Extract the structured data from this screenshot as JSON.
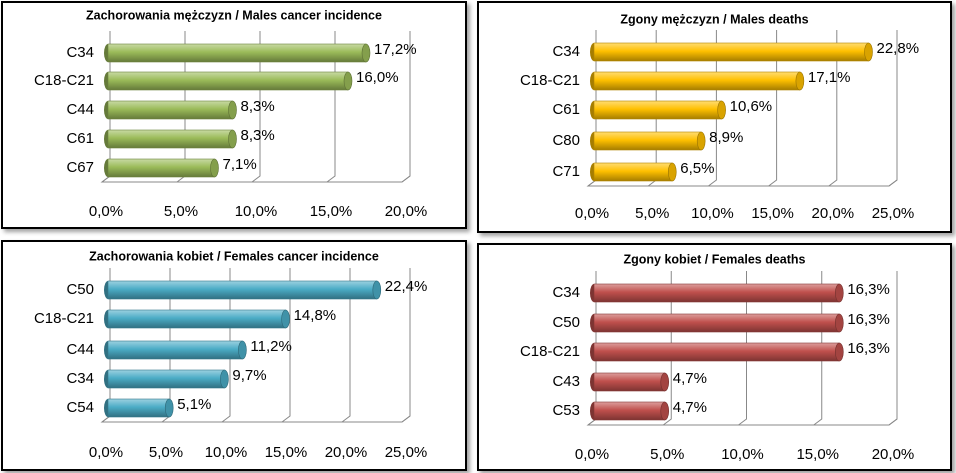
{
  "chart_data": [
    {
      "type": "bar",
      "title": "Zachorowania mężczyzn / Males cancer incidence",
      "categories": [
        "C34",
        "C18-C21",
        "C44",
        "C61",
        "C67"
      ],
      "values": [
        17.2,
        16.0,
        8.3,
        8.3,
        7.1
      ],
      "value_labels": [
        "17,2%",
        "16,0%",
        "8,3%",
        "8,3%",
        "7,1%"
      ],
      "color": "#9bbb59",
      "xlim": [
        0,
        20
      ],
      "xticks": [
        {
          "value": 0,
          "label": "0,0%"
        },
        {
          "value": 5,
          "label": "5,0%"
        },
        {
          "value": 10,
          "label": "10,0%"
        },
        {
          "value": 15,
          "label": "15,0%"
        },
        {
          "value": 20,
          "label": "20,0%"
        }
      ]
    },
    {
      "type": "bar",
      "title": "Zgony mężczyzn / Males deaths",
      "categories": [
        "C34",
        "C18-C21",
        "C61",
        "C80",
        "C71"
      ],
      "values": [
        22.8,
        17.1,
        10.6,
        8.9,
        6.5
      ],
      "value_labels": [
        "22,8%",
        "17,1%",
        "10,6%",
        "8,9%",
        "6,5%"
      ],
      "color": "#ffc000",
      "xlim": [
        0,
        25
      ],
      "xticks": [
        {
          "value": 0,
          "label": "0,0%"
        },
        {
          "value": 5,
          "label": "5,0%"
        },
        {
          "value": 10,
          "label": "10,0%"
        },
        {
          "value": 15,
          "label": "15,0%"
        },
        {
          "value": 20,
          "label": "20,0%"
        },
        {
          "value": 25,
          "label": "25,0%"
        }
      ]
    },
    {
      "type": "bar",
      "title": "Zachorowania kobiet / Females cancer incidence",
      "categories": [
        "C50",
        "C18-C21",
        "C44",
        "C34",
        "C54"
      ],
      "values": [
        22.4,
        14.8,
        11.2,
        9.7,
        5.1
      ],
      "value_labels": [
        "22,4%",
        "14,8%",
        "11,2%",
        "9,7%",
        "5,1%"
      ],
      "color": "#4bacc6",
      "xlim": [
        0,
        25
      ],
      "xticks": [
        {
          "value": 0,
          "label": "0,0%"
        },
        {
          "value": 5,
          "label": "5,0%"
        },
        {
          "value": 10,
          "label": "10,0%"
        },
        {
          "value": 15,
          "label": "15,0%"
        },
        {
          "value": 20,
          "label": "20,0%"
        },
        {
          "value": 25,
          "label": "25,0%"
        }
      ]
    },
    {
      "type": "bar",
      "title": "Zgony kobiet / Females deaths",
      "categories": [
        "C34",
        "C50",
        "C18-C21",
        "C43",
        "C53"
      ],
      "values": [
        16.3,
        16.3,
        16.3,
        4.7,
        4.7
      ],
      "value_labels": [
        "16,3%",
        "16,3%",
        "16,3%",
        "4,7%",
        "4,7%"
      ],
      "color": "#c0504d",
      "xlim": [
        0,
        20
      ],
      "xticks": [
        {
          "value": 0,
          "label": "0,0%"
        },
        {
          "value": 5,
          "label": "5,0%"
        },
        {
          "value": 10,
          "label": "10,0%"
        },
        {
          "value": 15,
          "label": "15,0%"
        },
        {
          "value": 20,
          "label": "20,0%"
        }
      ]
    }
  ]
}
